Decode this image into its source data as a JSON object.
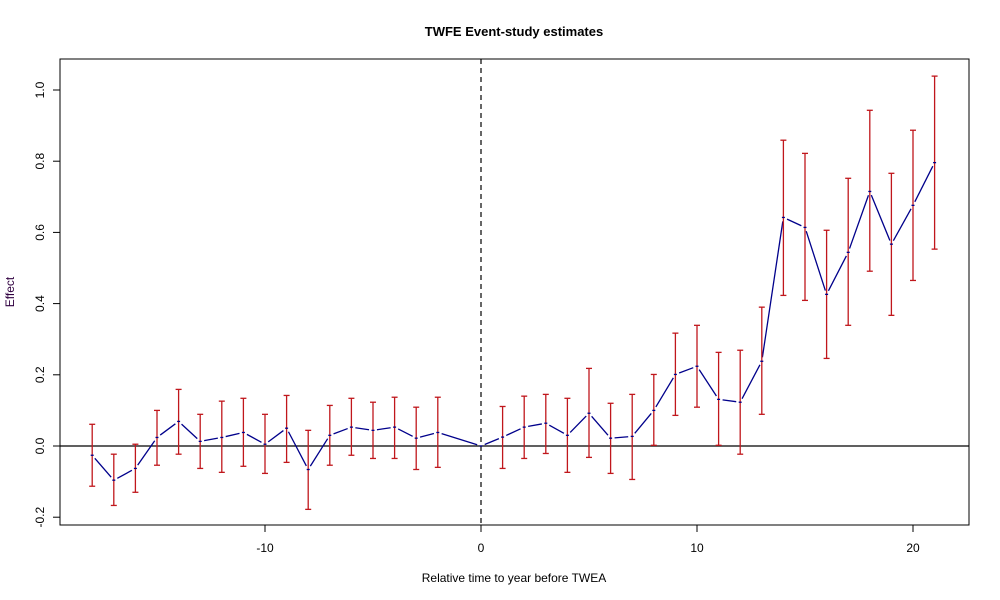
{
  "chart_data": {
    "type": "line",
    "title": "TWFE Event-study estimates",
    "xlabel": "Relative time to year before TWEA",
    "ylabel": "Effect",
    "xlim": [
      -19.5,
      22.5
    ],
    "ylim": [
      -0.22,
      1.08
    ],
    "xticks": [
      -10,
      0,
      10,
      20
    ],
    "xtick_labels": [
      "-10",
      "0",
      "10",
      "20"
    ],
    "yticks": [
      -0.2,
      0.0,
      0.2,
      0.4,
      0.6,
      0.8,
      1.0
    ],
    "ytick_labels": [
      "-0.2",
      "0.0",
      "0.2",
      "0.4",
      "0.6",
      "0.8",
      "1.0"
    ],
    "reference_lines": {
      "horizontal_y": 0,
      "vertical_dashed_x": 0
    },
    "colors": {
      "line": "#00008b",
      "error_bars": "#c0171c",
      "axes": "#000000",
      "ylabel": "#300040"
    },
    "points": [
      {
        "x": -18,
        "y": -0.026,
        "lo": -0.113,
        "hi": 0.061
      },
      {
        "x": -17,
        "y": -0.096,
        "lo": -0.167,
        "hi": -0.023
      },
      {
        "x": -16,
        "y": -0.063,
        "lo": -0.13,
        "hi": 0.005
      },
      {
        "x": -15,
        "y": 0.024,
        "lo": -0.054,
        "hi": 0.1
      },
      {
        "x": -14,
        "y": 0.069,
        "lo": -0.023,
        "hi": 0.159
      },
      {
        "x": -13,
        "y": 0.013,
        "lo": -0.063,
        "hi": 0.089
      },
      {
        "x": -12,
        "y": 0.024,
        "lo": -0.074,
        "hi": 0.126
      },
      {
        "x": -11,
        "y": 0.038,
        "lo": -0.057,
        "hi": 0.134
      },
      {
        "x": -10,
        "y": 0.005,
        "lo": -0.077,
        "hi": 0.089
      },
      {
        "x": -9,
        "y": 0.05,
        "lo": -0.046,
        "hi": 0.142
      },
      {
        "x": -8,
        "y": -0.066,
        "lo": -0.178,
        "hi": 0.044
      },
      {
        "x": -7,
        "y": 0.03,
        "lo": -0.054,
        "hi": 0.114
      },
      {
        "x": -6,
        "y": 0.053,
        "lo": -0.026,
        "hi": 0.134
      },
      {
        "x": -5,
        "y": 0.044,
        "lo": -0.035,
        "hi": 0.123
      },
      {
        "x": -4,
        "y": 0.053,
        "lo": -0.035,
        "hi": 0.137
      },
      {
        "x": -3,
        "y": 0.022,
        "lo": -0.066,
        "hi": 0.109
      },
      {
        "x": -2,
        "y": 0.038,
        "lo": -0.06,
        "hi": 0.137
      },
      {
        "x": 0,
        "y": 0.0,
        "lo": null,
        "hi": null
      },
      {
        "x": 1,
        "y": 0.025,
        "lo": -0.063,
        "hi": 0.111
      },
      {
        "x": 2,
        "y": 0.053,
        "lo": -0.035,
        "hi": 0.14
      },
      {
        "x": 3,
        "y": 0.064,
        "lo": -0.021,
        "hi": 0.145
      },
      {
        "x": 4,
        "y": 0.03,
        "lo": -0.074,
        "hi": 0.134
      },
      {
        "x": 5,
        "y": 0.092,
        "lo": -0.032,
        "hi": 0.218
      },
      {
        "x": 6,
        "y": 0.022,
        "lo": -0.077,
        "hi": 0.12
      },
      {
        "x": 7,
        "y": 0.027,
        "lo": -0.094,
        "hi": 0.145
      },
      {
        "x": 8,
        "y": 0.1,
        "lo": 0.002,
        "hi": 0.201
      },
      {
        "x": 9,
        "y": 0.201,
        "lo": 0.086,
        "hi": 0.317
      },
      {
        "x": 10,
        "y": 0.224,
        "lo": 0.109,
        "hi": 0.339
      },
      {
        "x": 11,
        "y": 0.131,
        "lo": 0.002,
        "hi": 0.263
      },
      {
        "x": 12,
        "y": 0.123,
        "lo": -0.023,
        "hi": 0.269
      },
      {
        "x": 13,
        "y": 0.238,
        "lo": 0.089,
        "hi": 0.39
      },
      {
        "x": 14,
        "y": 0.642,
        "lo": 0.423,
        "hi": 0.859
      },
      {
        "x": 15,
        "y": 0.614,
        "lo": 0.409,
        "hi": 0.822
      },
      {
        "x": 16,
        "y": 0.426,
        "lo": 0.246,
        "hi": 0.606
      },
      {
        "x": 17,
        "y": 0.544,
        "lo": 0.339,
        "hi": 0.752
      },
      {
        "x": 18,
        "y": 0.715,
        "lo": 0.491,
        "hi": 0.943
      },
      {
        "x": 19,
        "y": 0.567,
        "lo": 0.367,
        "hi": 0.766
      },
      {
        "x": 20,
        "y": 0.676,
        "lo": 0.465,
        "hi": 0.887
      },
      {
        "x": 21,
        "y": 0.796,
        "lo": 0.553,
        "hi": 1.039
      }
    ]
  }
}
